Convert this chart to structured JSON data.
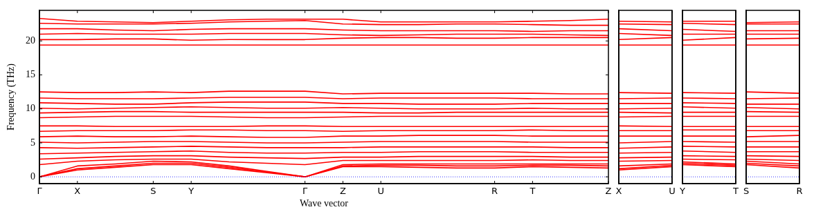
{
  "chart_data": [
    {
      "type": "line",
      "xlabel": "Wave vector",
      "ylabel": "Frequency (THz)",
      "grid": false,
      "legend": false,
      "categories": [
        "Γ",
        "X",
        null,
        "S",
        "Y",
        null,
        null,
        "Γ",
        "Z",
        "U",
        null,
        null,
        "R",
        "T",
        null,
        "Z"
      ],
      "ylim": [
        -1,
        24.5
      ],
      "yticks": [
        0,
        5,
        10,
        15,
        20
      ],
      "ref_lines": [
        {
          "axis": "y",
          "value": 0,
          "color": "#0000ff",
          "line_style": "dotted"
        }
      ],
      "series": [
        {
          "color": "#ff0000",
          "values": [
            0,
            1.0,
            1.4,
            1.8,
            1.8,
            1.2,
            0.6,
            0,
            1.5,
            1.5,
            1.4,
            1.3,
            1.3,
            1.5,
            1.4,
            1.3
          ]
        },
        {
          "color": "#ff0000",
          "values": [
            0,
            1.2,
            1.6,
            2.0,
            2.0,
            1.4,
            0.7,
            0,
            1.6,
            1.7,
            1.7,
            1.6,
            1.6,
            1.7,
            1.7,
            1.6
          ]
        },
        {
          "color": "#ff0000",
          "values": [
            0,
            1.6,
            1.9,
            2.3,
            2.2,
            1.6,
            0.8,
            0,
            1.8,
            1.9,
            1.9,
            1.9,
            1.9,
            1.9,
            1.9,
            1.9
          ]
        },
        {
          "color": "#ff0000",
          "values": [
            1.8,
            2.3,
            2.5,
            2.6,
            2.6,
            2.2,
            2.0,
            1.8,
            2.4,
            2.4,
            2.4,
            2.4,
            2.4,
            2.5,
            2.4,
            2.4
          ]
        },
        {
          "color": "#ff0000",
          "values": [
            2.6,
            2.8,
            3.0,
            3.1,
            3.1,
            2.9,
            2.8,
            2.7,
            2.9,
            2.9,
            3.0,
            3.0,
            3.0,
            3.0,
            2.9,
            2.9
          ]
        },
        {
          "color": "#ff0000",
          "values": [
            3.4,
            3.5,
            3.6,
            3.7,
            3.8,
            3.6,
            3.5,
            3.5,
            3.6,
            3.6,
            3.7,
            3.7,
            3.7,
            3.6,
            3.6,
            3.6
          ]
        },
        {
          "color": "#ff0000",
          "values": [
            4.3,
            4.2,
            4.3,
            4.4,
            4.5,
            4.4,
            4.3,
            4.3,
            4.3,
            4.4,
            4.4,
            4.4,
            4.4,
            4.4,
            4.3,
            4.3
          ]
        },
        {
          "color": "#ff0000",
          "values": [
            5.1,
            5.0,
            5.1,
            5.2,
            5.2,
            5.1,
            5.0,
            5.0,
            5.1,
            5.2,
            5.2,
            5.2,
            5.2,
            5.1,
            5.1,
            5.1
          ]
        },
        {
          "color": "#ff0000",
          "values": [
            5.9,
            6.0,
            5.9,
            5.9,
            6.0,
            5.9,
            5.8,
            5.8,
            6.0,
            6.0,
            6.1,
            6.1,
            6.1,
            6.0,
            6.0,
            6.0
          ]
        },
        {
          "color": "#ff0000",
          "values": [
            6.7,
            6.8,
            6.8,
            6.8,
            6.9,
            6.9,
            6.8,
            6.8,
            6.7,
            6.8,
            6.8,
            6.8,
            6.8,
            6.9,
            6.8,
            6.8
          ]
        },
        {
          "color": "#ff0000",
          "values": [
            7.5,
            7.5,
            7.4,
            7.4,
            7.4,
            7.4,
            7.5,
            7.5,
            7.4,
            7.4,
            7.4,
            7.4,
            7.4,
            7.4,
            7.4,
            7.4
          ]
        },
        {
          "color": "#ff0000",
          "values": [
            8.7,
            8.8,
            8.9,
            8.9,
            8.9,
            8.8,
            8.7,
            8.7,
            8.8,
            8.9,
            8.9,
            8.9,
            8.9,
            8.9,
            8.9,
            8.9
          ]
        },
        {
          "color": "#ff0000",
          "values": [
            9.4,
            9.5,
            9.6,
            9.6,
            9.5,
            9.5,
            9.5,
            9.5,
            9.5,
            9.4,
            9.4,
            9.5,
            9.5,
            9.5,
            9.5,
            9.5
          ]
        },
        {
          "color": "#ff0000",
          "values": [
            10.1,
            10.0,
            10.1,
            10.2,
            10.3,
            10.2,
            10.1,
            10.1,
            10.2,
            10.1,
            10.0,
            10.0,
            10.0,
            10.1,
            10.0,
            10.0
          ]
        },
        {
          "color": "#ff0000",
          "values": [
            10.9,
            10.8,
            10.7,
            10.7,
            10.9,
            11.0,
            11.0,
            11.0,
            10.8,
            10.8,
            10.7,
            10.7,
            10.7,
            10.8,
            10.8,
            10.8
          ]
        },
        {
          "color": "#ff0000",
          "values": [
            11.6,
            11.5,
            11.5,
            11.5,
            11.6,
            11.7,
            11.7,
            11.7,
            11.5,
            11.6,
            11.6,
            11.6,
            11.6,
            11.5,
            11.5,
            11.5
          ]
        },
        {
          "color": "#ff0000",
          "values": [
            12.5,
            12.4,
            12.4,
            12.5,
            12.4,
            12.6,
            12.6,
            12.6,
            12.2,
            12.3,
            12.3,
            12.3,
            12.3,
            12.3,
            12.2,
            12.2
          ]
        },
        {
          "color": "#ff0000",
          "values": [
            19.4,
            19.4,
            19.4,
            19.4,
            19.4,
            19.4,
            19.4,
            19.4,
            19.4,
            19.4,
            19.4,
            19.4,
            19.4,
            19.4,
            19.4,
            19.4
          ]
        },
        {
          "color": "#ff0000",
          "values": [
            20.2,
            20.2,
            20.3,
            20.3,
            20.1,
            20.2,
            20.2,
            20.2,
            20.4,
            20.5,
            20.5,
            20.4,
            20.4,
            20.5,
            20.5,
            20.5
          ]
        },
        {
          "color": "#ff0000",
          "values": [
            21.0,
            21.1,
            21.0,
            21.0,
            21.0,
            21.1,
            21.1,
            21.1,
            20.9,
            20.8,
            20.9,
            21.0,
            21.0,
            21.0,
            20.9,
            20.8
          ]
        },
        {
          "color": "#ff0000",
          "values": [
            21.8,
            21.8,
            21.6,
            21.5,
            21.7,
            21.8,
            21.8,
            21.8,
            21.6,
            21.5,
            21.5,
            21.5,
            21.5,
            21.4,
            21.5,
            21.5
          ]
        },
        {
          "color": "#ff0000",
          "values": [
            22.6,
            22.5,
            22.5,
            22.5,
            22.6,
            22.8,
            22.9,
            23.0,
            22.5,
            22.4,
            22.4,
            22.5,
            22.5,
            22.4,
            22.3,
            22.3
          ]
        },
        {
          "color": "#ff0000",
          "values": [
            23.3,
            22.9,
            22.8,
            22.7,
            22.9,
            23.1,
            23.2,
            23.2,
            23.2,
            22.8,
            22.8,
            22.8,
            22.8,
            22.9,
            23.0,
            23.2
          ]
        }
      ]
    },
    {
      "type": "line",
      "grid": "x",
      "legend": false,
      "tick_labels": "x",
      "categories": [
        "X",
        "U"
      ],
      "ylim": [
        -1,
        24.5
      ],
      "ref_lines": [
        {
          "axis": "y",
          "value": 0,
          "color": "#0000ff",
          "line_style": "dotted"
        }
      ],
      "series": [
        {
          "color": "#ff0000",
          "values": [
            1.0,
            1.5
          ]
        },
        {
          "color": "#ff0000",
          "values": [
            1.2,
            1.7
          ]
        },
        {
          "color": "#ff0000",
          "values": [
            1.6,
            1.9
          ]
        },
        {
          "color": "#ff0000",
          "values": [
            2.3,
            2.4
          ]
        },
        {
          "color": "#ff0000",
          "values": [
            2.8,
            2.9
          ]
        },
        {
          "color": "#ff0000",
          "values": [
            3.5,
            3.6
          ]
        },
        {
          "color": "#ff0000",
          "values": [
            4.2,
            4.4
          ]
        },
        {
          "color": "#ff0000",
          "values": [
            5.0,
            5.2
          ]
        },
        {
          "color": "#ff0000",
          "values": [
            6.0,
            6.0
          ]
        },
        {
          "color": "#ff0000",
          "values": [
            6.8,
            6.8
          ]
        },
        {
          "color": "#ff0000",
          "values": [
            7.5,
            7.4
          ]
        },
        {
          "color": "#ff0000",
          "values": [
            8.8,
            8.9
          ]
        },
        {
          "color": "#ff0000",
          "values": [
            9.5,
            9.4
          ]
        },
        {
          "color": "#ff0000",
          "values": [
            10.0,
            10.1
          ]
        },
        {
          "color": "#ff0000",
          "values": [
            10.8,
            10.8
          ]
        },
        {
          "color": "#ff0000",
          "values": [
            11.5,
            11.6
          ]
        },
        {
          "color": "#ff0000",
          "values": [
            12.4,
            12.3
          ]
        },
        {
          "color": "#ff0000",
          "values": [
            19.4,
            19.4
          ]
        },
        {
          "color": "#ff0000",
          "values": [
            20.2,
            20.5
          ]
        },
        {
          "color": "#ff0000",
          "values": [
            21.1,
            20.8
          ]
        },
        {
          "color": "#ff0000",
          "values": [
            21.8,
            21.5
          ]
        },
        {
          "color": "#ff0000",
          "values": [
            22.5,
            22.4
          ]
        },
        {
          "color": "#ff0000",
          "values": [
            22.9,
            22.8
          ]
        }
      ]
    },
    {
      "type": "line",
      "grid": "x",
      "legend": false,
      "tick_labels": "x",
      "categories": [
        "Y",
        "T"
      ],
      "ylim": [
        -1,
        24.5
      ],
      "ref_lines": [
        {
          "axis": "y",
          "value": 0,
          "color": "#0000ff",
          "line_style": "dotted"
        }
      ],
      "series": [
        {
          "color": "#ff0000",
          "values": [
            1.8,
            1.5
          ]
        },
        {
          "color": "#ff0000",
          "values": [
            2.0,
            1.7
          ]
        },
        {
          "color": "#ff0000",
          "values": [
            2.2,
            1.9
          ]
        },
        {
          "color": "#ff0000",
          "values": [
            2.6,
            2.5
          ]
        },
        {
          "color": "#ff0000",
          "values": [
            3.1,
            3.0
          ]
        },
        {
          "color": "#ff0000",
          "values": [
            3.8,
            3.6
          ]
        },
        {
          "color": "#ff0000",
          "values": [
            4.5,
            4.4
          ]
        },
        {
          "color": "#ff0000",
          "values": [
            5.2,
            5.1
          ]
        },
        {
          "color": "#ff0000",
          "values": [
            6.0,
            6.0
          ]
        },
        {
          "color": "#ff0000",
          "values": [
            6.9,
            6.9
          ]
        },
        {
          "color": "#ff0000",
          "values": [
            7.4,
            7.4
          ]
        },
        {
          "color": "#ff0000",
          "values": [
            8.9,
            8.9
          ]
        },
        {
          "color": "#ff0000",
          "values": [
            9.5,
            9.5
          ]
        },
        {
          "color": "#ff0000",
          "values": [
            10.3,
            10.1
          ]
        },
        {
          "color": "#ff0000",
          "values": [
            10.9,
            10.8
          ]
        },
        {
          "color": "#ff0000",
          "values": [
            11.6,
            11.5
          ]
        },
        {
          "color": "#ff0000",
          "values": [
            12.4,
            12.3
          ]
        },
        {
          "color": "#ff0000",
          "values": [
            19.4,
            19.4
          ]
        },
        {
          "color": "#ff0000",
          "values": [
            20.1,
            20.5
          ]
        },
        {
          "color": "#ff0000",
          "values": [
            21.0,
            21.0
          ]
        },
        {
          "color": "#ff0000",
          "values": [
            21.7,
            21.4
          ]
        },
        {
          "color": "#ff0000",
          "values": [
            22.6,
            22.4
          ]
        },
        {
          "color": "#ff0000",
          "values": [
            22.9,
            22.9
          ]
        }
      ]
    },
    {
      "type": "line",
      "grid": "x",
      "legend": false,
      "tick_labels": "x",
      "categories": [
        "S",
        "R"
      ],
      "ylim": [
        -1,
        24.5
      ],
      "ref_lines": [
        {
          "axis": "y",
          "value": 0,
          "color": "#0000ff",
          "line_style": "dotted"
        }
      ],
      "series": [
        {
          "color": "#ff0000",
          "values": [
            1.8,
            1.3
          ]
        },
        {
          "color": "#ff0000",
          "values": [
            2.0,
            1.6
          ]
        },
        {
          "color": "#ff0000",
          "values": [
            2.3,
            1.9
          ]
        },
        {
          "color": "#ff0000",
          "values": [
            2.6,
            2.4
          ]
        },
        {
          "color": "#ff0000",
          "values": [
            3.1,
            3.0
          ]
        },
        {
          "color": "#ff0000",
          "values": [
            3.7,
            3.7
          ]
        },
        {
          "color": "#ff0000",
          "values": [
            4.4,
            4.4
          ]
        },
        {
          "color": "#ff0000",
          "values": [
            5.2,
            5.2
          ]
        },
        {
          "color": "#ff0000",
          "values": [
            5.9,
            6.1
          ]
        },
        {
          "color": "#ff0000",
          "values": [
            6.8,
            6.8
          ]
        },
        {
          "color": "#ff0000",
          "values": [
            7.4,
            7.4
          ]
        },
        {
          "color": "#ff0000",
          "values": [
            8.9,
            8.9
          ]
        },
        {
          "color": "#ff0000",
          "values": [
            9.6,
            9.5
          ]
        },
        {
          "color": "#ff0000",
          "values": [
            10.2,
            10.0
          ]
        },
        {
          "color": "#ff0000",
          "values": [
            10.7,
            10.7
          ]
        },
        {
          "color": "#ff0000",
          "values": [
            11.5,
            11.6
          ]
        },
        {
          "color": "#ff0000",
          "values": [
            12.5,
            12.3
          ]
        },
        {
          "color": "#ff0000",
          "values": [
            19.4,
            19.4
          ]
        },
        {
          "color": "#ff0000",
          "values": [
            20.3,
            20.4
          ]
        },
        {
          "color": "#ff0000",
          "values": [
            21.0,
            21.0
          ]
        },
        {
          "color": "#ff0000",
          "values": [
            21.5,
            21.5
          ]
        },
        {
          "color": "#ff0000",
          "values": [
            22.5,
            22.5
          ]
        },
        {
          "color": "#ff0000",
          "values": [
            22.7,
            22.8
          ]
        }
      ]
    }
  ]
}
